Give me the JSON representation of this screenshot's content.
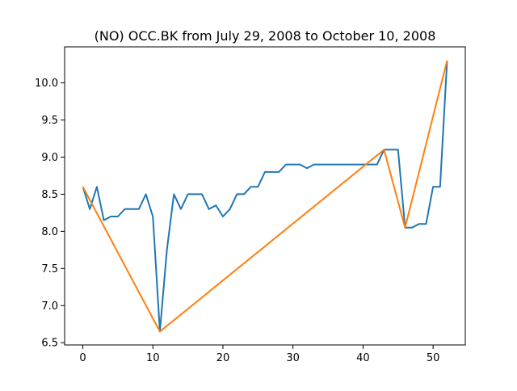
{
  "chart_data": {
    "type": "line",
    "title": "(NO) OCC.BK from July 29, 2008 to October 10, 2008",
    "xlabel": "",
    "ylabel": "",
    "xlim": [
      -2.6,
      54.6
    ],
    "ylim": [
      6.47,
      10.485
    ],
    "xticks": [
      0,
      10,
      20,
      30,
      40,
      50
    ],
    "xtick_labels": [
      "0",
      "10",
      "20",
      "30",
      "40",
      "50"
    ],
    "yticks": [
      6.5,
      7.0,
      7.5,
      8.0,
      8.5,
      9.0,
      9.5,
      10.0
    ],
    "ytick_labels": [
      "6.5",
      "7.0",
      "7.5",
      "8.0",
      "8.5",
      "9.0",
      "9.5",
      "10.0"
    ],
    "grid": false,
    "legend": null,
    "series": [
      {
        "color": "#1f77b4",
        "x": [
          0,
          1,
          2,
          3,
          4,
          5,
          6,
          7,
          8,
          9,
          10,
          11,
          12,
          13,
          14,
          15,
          16,
          17,
          18,
          19,
          20,
          21,
          22,
          23,
          24,
          25,
          26,
          27,
          28,
          29,
          30,
          31,
          32,
          33,
          34,
          35,
          36,
          37,
          38,
          39,
          40,
          41,
          42,
          43,
          44,
          45,
          46,
          47,
          48,
          49,
          50,
          51,
          52
        ],
        "values": [
          8.6,
          8.3,
          8.6,
          8.15,
          8.2,
          8.2,
          8.3,
          8.3,
          8.3,
          8.5,
          8.2,
          6.65,
          7.75,
          8.5,
          8.3,
          8.5,
          8.5,
          8.5,
          8.3,
          8.35,
          8.2,
          8.3,
          8.5,
          8.5,
          8.6,
          8.6,
          8.8,
          8.8,
          8.8,
          8.9,
          8.9,
          8.9,
          8.85,
          8.9,
          8.9,
          8.9,
          8.9,
          8.9,
          8.9,
          8.9,
          8.9,
          8.9,
          8.9,
          9.1,
          9.1,
          9.1,
          8.05,
          8.05,
          8.1,
          8.1,
          8.6,
          8.6,
          10.3
        ]
      },
      {
        "color": "#ff7f0e",
        "x": [
          0,
          11,
          43,
          46,
          52
        ],
        "values": [
          8.6,
          6.65,
          9.1,
          8.05,
          10.3
        ]
      }
    ]
  }
}
